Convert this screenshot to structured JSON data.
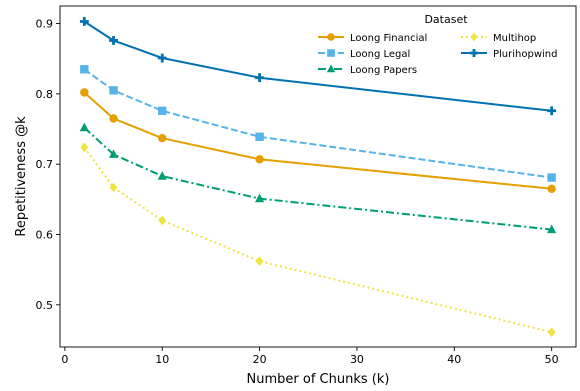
{
  "chart_data": {
    "type": "line",
    "title": "",
    "xlabel": "Number of Chunks (k)",
    "ylabel": "Repetitiveness @k",
    "x": [
      2,
      5,
      10,
      20,
      50
    ],
    "xlim": [
      -0.5,
      52.5
    ],
    "ylim": [
      0.44,
      0.925
    ],
    "xticks": [
      "0",
      "10",
      "20",
      "30",
      "40",
      "50"
    ],
    "yticks": [
      "0.5",
      "0.6",
      "0.7",
      "0.8",
      "0.9"
    ],
    "grid": false,
    "legend": {
      "title": "Dataset",
      "placement": "top-right",
      "columns": 2
    },
    "series": [
      {
        "name": "Loong Financial",
        "color": "#e69f00",
        "marker": "circle",
        "linestyle": "solid",
        "values": [
          0.802,
          0.765,
          0.737,
          0.707,
          0.665
        ]
      },
      {
        "name": "Loong Legal",
        "color": "#56b4e9",
        "marker": "square",
        "linestyle": "dashed",
        "values": [
          0.835,
          0.805,
          0.776,
          0.739,
          0.681
        ]
      },
      {
        "name": "Loong Papers",
        "color": "#009e73",
        "marker": "triangle",
        "linestyle": "dashdot",
        "values": [
          0.752,
          0.714,
          0.683,
          0.651,
          0.607
        ]
      },
      {
        "name": "Multihop",
        "color": "#f0e442",
        "marker": "diamond",
        "linestyle": "dotted",
        "values": [
          0.724,
          0.667,
          0.62,
          0.562,
          0.461
        ]
      },
      {
        "name": "Plurihopwind",
        "color": "#0072b2",
        "marker": "plus",
        "linestyle": "solid",
        "values": [
          0.903,
          0.876,
          0.851,
          0.823,
          0.776
        ]
      }
    ]
  }
}
